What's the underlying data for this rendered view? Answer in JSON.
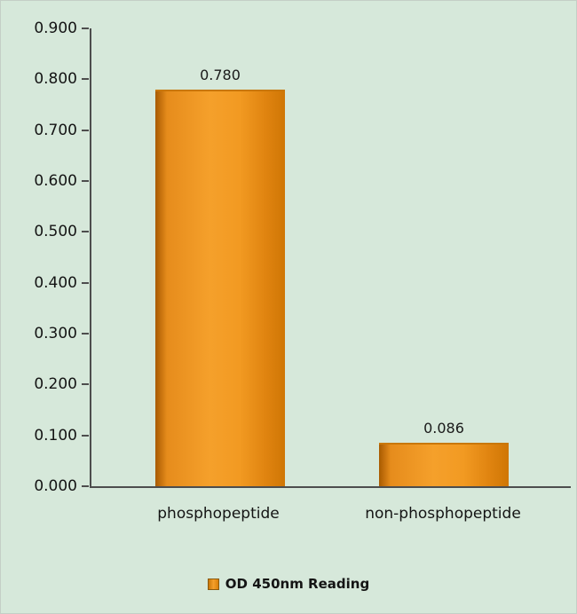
{
  "chart_data": {
    "type": "bar",
    "title": "",
    "categories": [
      "phosphopeptide",
      "non-phosphopeptide"
    ],
    "values": [
      0.78,
      0.086
    ],
    "value_labels": [
      "0.780",
      "0.086"
    ],
    "yticks": [
      "0.900",
      "0.800",
      "0.700",
      "0.600",
      "0.500",
      "0.400",
      "0.300",
      "0.200",
      "0.100",
      "0.000"
    ],
    "ylim": [
      0,
      0.9
    ],
    "xlabel": "",
    "ylabel": "",
    "grid": false,
    "legend_position": "bottom",
    "legend": "OD 450nm Reading",
    "colors": {
      "bar": "#f5a02b",
      "bar_edge": "#c97708",
      "background": "#d6e8da",
      "axis": "#4d4d4d",
      "text": "#141414"
    }
  }
}
